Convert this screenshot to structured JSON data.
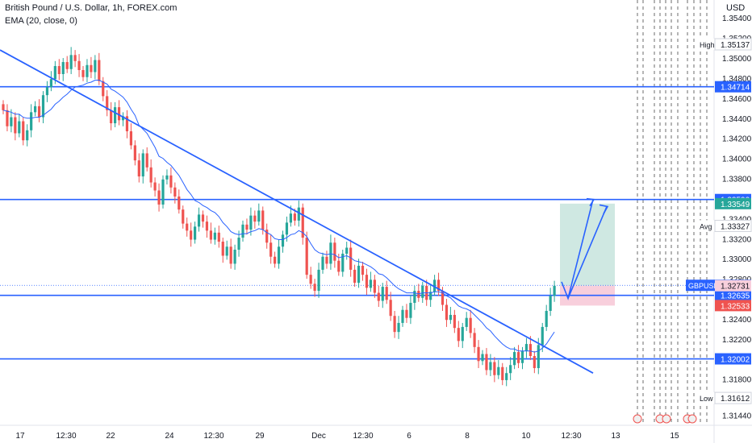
{
  "header": {
    "title": "British Pound / U.S. Dollar, 1h, FOREX.com",
    "indicator": "EMA (20, close, 0)",
    "currency": "USD"
  },
  "colors": {
    "bull": "#26a69a",
    "bear": "#ef5350",
    "line": "#2962ff",
    "ema": "#2962ff",
    "profit_zone": "#cfe8e2",
    "loss_zone": "#f8cfdc"
  },
  "chart_data": {
    "type": "candlestick",
    "symbol": "GBPUSD",
    "timeframe": "1h",
    "ylim": [
      1.3134,
      1.3545
    ],
    "y_ticks": [
      "1.35400",
      "1.35200",
      "1.35000",
      "1.34800",
      "1.34600",
      "1.34400",
      "1.34200",
      "1.34000",
      "1.33800",
      "1.33600",
      "1.33400",
      "1.33200",
      "1.33000",
      "1.32800",
      "1.32600",
      "1.32400",
      "1.32200",
      "1.32000",
      "1.31800",
      "1.31600",
      "1.31440"
    ],
    "x_ticks": [
      "17",
      "12:30",
      "22",
      "24",
      "12:30",
      "29",
      "Dec",
      "12:30",
      "6",
      "8",
      "10",
      "12:30",
      "13",
      "15"
    ],
    "horizontal_levels": [
      {
        "label": "1.34714",
        "value": 1.34714
      },
      {
        "label": "1.33590",
        "value": 1.3359
      },
      {
        "label": "1.32635",
        "value": 1.32635
      },
      {
        "label": "1.32002",
        "value": 1.32002
      }
    ],
    "price_badges": [
      {
        "label": "GBPUSD",
        "value": "1.32735"
      },
      {
        "label": "",
        "value": "1.32731"
      },
      {
        "label": "",
        "value": "1.33549"
      },
      {
        "label": "",
        "value": "1.32533"
      }
    ],
    "stats": [
      {
        "label": "High",
        "value": "1.35137"
      },
      {
        "label": "Avg",
        "value": "1.33327"
      },
      {
        "label": "Low",
        "value": "1.31612"
      }
    ],
    "trendline": [
      {
        "i": 0,
        "p": 1.3508
      },
      {
        "i": 155,
        "p": 1.3186
      }
    ],
    "position_tool": {
      "entry": 1.32731,
      "target": 1.33549,
      "stop": 1.32533
    },
    "projected_path": [
      [
        1.3261,
        1.3348
      ],
      [
        1.3261,
        1.3346
      ]
    ],
    "closes": [
      1.3448,
      1.3432,
      1.3441,
      1.3425,
      1.3437,
      1.3418,
      1.3428,
      1.3446,
      1.3452,
      1.3441,
      1.3463,
      1.3471,
      1.3479,
      1.3492,
      1.3484,
      1.3496,
      1.3489,
      1.3503,
      1.3497,
      1.3488,
      1.3481,
      1.3493,
      1.3486,
      1.3498,
      1.3477,
      1.3462,
      1.3448,
      1.3435,
      1.3451,
      1.3438,
      1.3442,
      1.3427,
      1.3413,
      1.3398,
      1.3382,
      1.3405,
      1.3391,
      1.3376,
      1.3368,
      1.3354,
      1.3379,
      1.3383,
      1.3371,
      1.3362,
      1.3349,
      1.3335,
      1.3328,
      1.3319,
      1.3332,
      1.3344,
      1.3337,
      1.3328,
      1.3319,
      1.3326,
      1.3317,
      1.3303,
      1.3312,
      1.3295,
      1.3309,
      1.3321,
      1.3334,
      1.3329,
      1.3343,
      1.3337,
      1.3348,
      1.3329,
      1.3316,
      1.3302,
      1.3295,
      1.3312,
      1.3324,
      1.3336,
      1.3345,
      1.3338,
      1.3351,
      1.3321,
      1.3284,
      1.3275,
      1.3268,
      1.3289,
      1.3302,
      1.3295,
      1.3316,
      1.3298,
      1.3287,
      1.3305,
      1.3311,
      1.3289,
      1.3276,
      1.3293,
      1.3284,
      1.3271,
      1.3279,
      1.3266,
      1.3258,
      1.3272,
      1.3259,
      1.3243,
      1.3227,
      1.3236,
      1.3249,
      1.3241,
      1.3256,
      1.3268,
      1.3261,
      1.3273,
      1.3259,
      1.3267,
      1.3279,
      1.3268,
      1.3254,
      1.3239,
      1.3244,
      1.3231,
      1.3218,
      1.3232,
      1.3241,
      1.3226,
      1.3212,
      1.3198,
      1.3205,
      1.3189,
      1.3197,
      1.3184,
      1.3192,
      1.3179,
      1.3186,
      1.3194,
      1.3207,
      1.3196,
      1.3208,
      1.3215,
      1.3203,
      1.3191,
      1.3214,
      1.3232,
      1.3248,
      1.3263,
      1.3273
    ],
    "ema": [
      1.3448,
      1.3447,
      1.3446,
      1.3444,
      1.3444,
      1.3441,
      1.344,
      1.344,
      1.3441,
      1.3441,
      1.3443,
      1.3446,
      1.3449,
      1.3454,
      1.3457,
      1.3461,
      1.3464,
      1.3468,
      1.3471,
      1.3472,
      1.3473,
      1.3475,
      1.3476,
      1.3478,
      1.3478,
      1.3476,
      1.3474,
      1.3469,
      1.3467,
      1.3464,
      1.3461,
      1.3456,
      1.3449,
      1.3443,
      1.3433,
      1.3429,
      1.3425,
      1.3418,
      1.3411,
      1.3402,
      1.34,
      1.3396,
      1.3393,
      1.3388,
      1.3383,
      1.3376,
      1.3369,
      1.3364,
      1.3358,
      1.3356,
      1.3353,
      1.3351,
      1.3348,
      1.3346,
      1.3342,
      1.3336,
      1.3332,
      1.3327,
      1.3325,
      1.3324,
      1.3325,
      1.3325,
      1.3327,
      1.3328,
      1.333,
      1.3329,
      1.3326,
      1.3324,
      1.332,
      1.3319,
      1.3319,
      1.3321,
      1.3324,
      1.3325,
      1.3328,
      1.3326,
      1.3322,
      1.3315,
      1.3309,
      1.3306,
      1.3305,
      1.3304,
      1.3305,
      1.3304,
      1.3301,
      1.3302,
      1.3303,
      1.3301,
      1.3298,
      1.3297,
      1.3296,
      1.3294,
      1.3292,
      1.3289,
      1.3285,
      1.3284,
      1.3281,
      1.3277,
      1.3273,
      1.327,
      1.3268,
      1.3266,
      1.3266,
      1.3266,
      1.3265,
      1.3266,
      1.3266,
      1.3266,
      1.3267,
      1.3267,
      1.3266,
      1.3263,
      1.3261,
      1.3257,
      1.3253,
      1.3251,
      1.325,
      1.3248,
      1.3244,
      1.324,
      1.3236,
      1.3231,
      1.3228,
      1.3223,
      1.3219,
      1.3215,
      1.3212,
      1.321,
      1.321,
      1.3208,
      1.3208,
      1.3208,
      1.3208,
      1.3207,
      1.3208,
      1.3211,
      1.3215,
      1.3221,
      1.3227
    ]
  }
}
